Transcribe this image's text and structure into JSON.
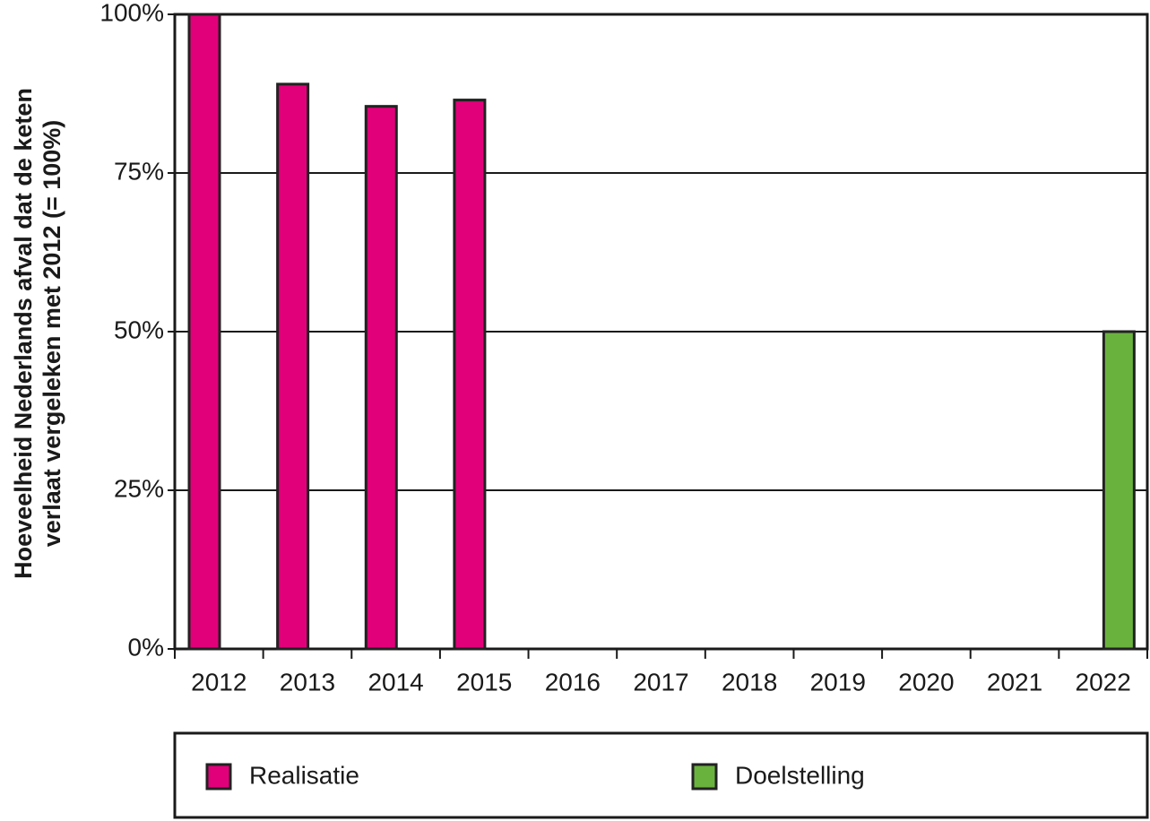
{
  "chart_data": {
    "type": "bar",
    "ylabel": [
      "Hoeveelheid Nederlands afval dat de keten",
      "verlaat vergeleken met 2012 (= 100%)"
    ],
    "categories": [
      "2012",
      "2013",
      "2014",
      "2015",
      "2016",
      "2017",
      "2018",
      "2019",
      "2020",
      "2021",
      "2022"
    ],
    "series": [
      {
        "name": "Realisatie",
        "color": "#e2007a",
        "values": [
          100,
          89,
          85.5,
          86.5,
          null,
          null,
          null,
          null,
          null,
          null,
          null
        ]
      },
      {
        "name": "Doelstelling",
        "color": "#6ab23e",
        "values": [
          null,
          null,
          null,
          null,
          null,
          null,
          null,
          null,
          null,
          null,
          50
        ]
      }
    ],
    "ylim": [
      0,
      100
    ],
    "yticks": [
      {
        "value": 0,
        "label": "0%"
      },
      {
        "value": 25,
        "label": "25%"
      },
      {
        "value": 50,
        "label": "50%"
      },
      {
        "value": 75,
        "label": "75%"
      },
      {
        "value": 100,
        "label": "100%"
      }
    ],
    "grid": true
  }
}
